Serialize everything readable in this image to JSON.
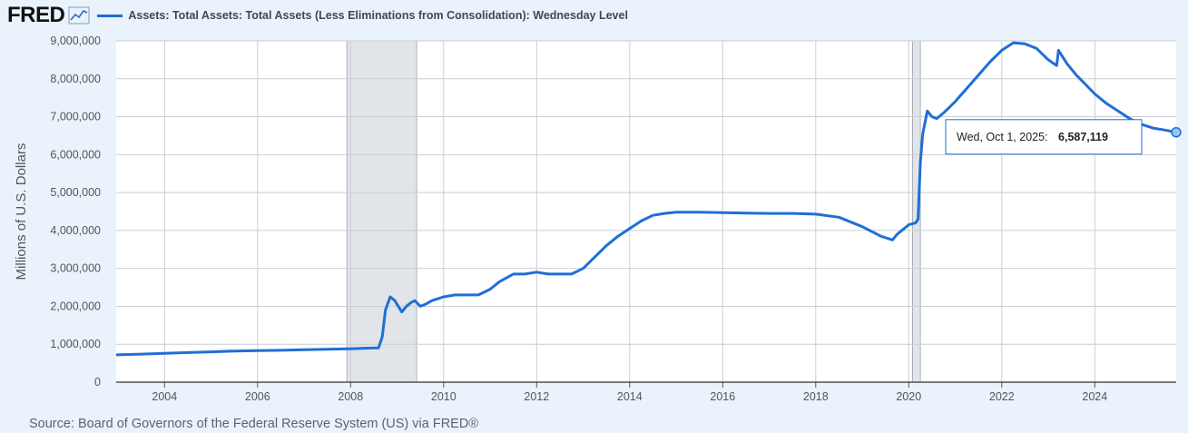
{
  "header": {
    "logo_text": "FRED",
    "logo_icon": "line-chart-icon",
    "series_title": "Assets: Total Assets: Total Assets (Less Eliminations from Consolidation): Wednesday Level"
  },
  "footer": {
    "source": "Source: Board of Governors of the Federal Reserve System (US) via FRED®"
  },
  "tooltip": {
    "date": "Wed, Oct 1, 2025:",
    "value": "6,587,119"
  },
  "colors": {
    "line": "#1f6fd6",
    "recession": "#e1e5ea",
    "background": "#eaf2fc",
    "plot_bg": "#ffffff"
  },
  "chart_data": {
    "type": "line",
    "title": "Assets: Total Assets: Total Assets (Less Eliminations from Consolidation): Wednesday Level",
    "ylabel": "Millions of U.S. Dollars",
    "xlabel": "",
    "ylim": [
      0,
      9000000
    ],
    "xlim": [
      2002.96,
      2025.75
    ],
    "y_ticks": [
      0,
      1000000,
      2000000,
      3000000,
      4000000,
      5000000,
      6000000,
      7000000,
      8000000,
      9000000
    ],
    "y_tick_labels": [
      "0",
      "1,000,000",
      "2,000,000",
      "3,000,000",
      "4,000,000",
      "5,000,000",
      "6,000,000",
      "7,000,000",
      "8,000,000",
      "9,000,000"
    ],
    "x_ticks": [
      2004,
      2006,
      2008,
      2010,
      2012,
      2014,
      2016,
      2018,
      2020,
      2022,
      2024
    ],
    "x_tick_labels": [
      "2004",
      "2006",
      "2008",
      "2010",
      "2012",
      "2014",
      "2016",
      "2018",
      "2020",
      "2022",
      "2024"
    ],
    "grid": true,
    "recessions": [
      [
        2007.92,
        2009.42
      ],
      [
        2020.08,
        2020.25
      ]
    ],
    "series": [
      {
        "x": [
          2002.96,
          2003.5,
          2004.0,
          2004.5,
          2005.0,
          2005.5,
          2006.0,
          2006.5,
          2007.0,
          2007.5,
          2008.0,
          2008.3,
          2008.6,
          2008.68,
          2008.75,
          2008.85,
          2008.95,
          2009.0,
          2009.1,
          2009.2,
          2009.3,
          2009.38,
          2009.5,
          2009.6,
          2009.75,
          2010.0,
          2010.25,
          2010.5,
          2010.75,
          2011.0,
          2011.2,
          2011.5,
          2011.75,
          2012.0,
          2012.25,
          2012.5,
          2012.75,
          2013.0,
          2013.25,
          2013.5,
          2013.75,
          2014.0,
          2014.25,
          2014.5,
          2014.75,
          2015.0,
          2015.5,
          2016.0,
          2016.5,
          2017.0,
          2017.5,
          2018.0,
          2018.5,
          2019.0,
          2019.4,
          2019.65,
          2019.75,
          2019.9,
          2020.0,
          2020.15,
          2020.2,
          2020.25,
          2020.3,
          2020.4,
          2020.5,
          2020.6,
          2020.75,
          2021.0,
          2021.25,
          2021.5,
          2021.75,
          2022.0,
          2022.25,
          2022.5,
          2022.75,
          2023.0,
          2023.18,
          2023.22,
          2023.4,
          2023.6,
          2023.8,
          2024.0,
          2024.25,
          2024.5,
          2024.75,
          2025.0,
          2025.25,
          2025.5,
          2025.75
        ],
        "values": [
          720000,
          740000,
          760000,
          780000,
          800000,
          820000,
          830000,
          840000,
          855000,
          870000,
          880000,
          895000,
          905000,
          1200000,
          1900000,
          2250000,
          2150000,
          2050000,
          1850000,
          2000000,
          2100000,
          2150000,
          2000000,
          2050000,
          2150000,
          2250000,
          2300000,
          2300000,
          2300000,
          2450000,
          2650000,
          2850000,
          2850000,
          2900000,
          2850000,
          2850000,
          2850000,
          3000000,
          3300000,
          3600000,
          3850000,
          4050000,
          4250000,
          4400000,
          4450000,
          4480000,
          4480000,
          4470000,
          4460000,
          4450000,
          4450000,
          4430000,
          4350000,
          4100000,
          3850000,
          3750000,
          3900000,
          4050000,
          4150000,
          4200000,
          4300000,
          5800000,
          6550000,
          7150000,
          7000000,
          6950000,
          7100000,
          7400000,
          7750000,
          8100000,
          8450000,
          8750000,
          8950000,
          8920000,
          8800000,
          8500000,
          8350000,
          8750000,
          8400000,
          8100000,
          7850000,
          7600000,
          7350000,
          7150000,
          6950000,
          6800000,
          6700000,
          6650000,
          6587119
        ]
      }
    ]
  }
}
